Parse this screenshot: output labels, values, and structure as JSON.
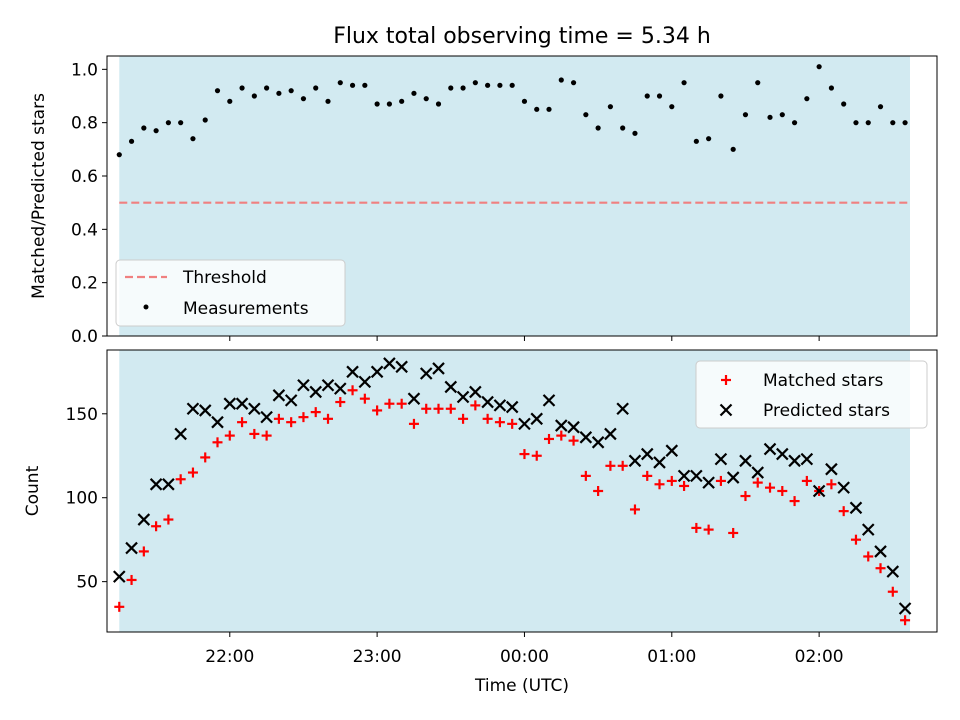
{
  "figure_title": "Flux total observing time = 5.34 h",
  "colors": {
    "band": "#add8e6",
    "threshold": "#f08080",
    "measurements": "#000000",
    "matched": "#ff0000",
    "predicted": "#000000"
  },
  "chart_data": [
    {
      "type": "scatter",
      "title": "",
      "xlabel": "",
      "ylabel": "Matched/Predicted stars",
      "ylim": [
        0.0,
        1.05
      ],
      "yticks": [
        "0.0",
        "0.2",
        "0.4",
        "0.6",
        "0.8",
        "1.0"
      ],
      "xticks": [
        "22:00",
        "23:00",
        "00:00",
        "01:00",
        "02:00"
      ],
      "tick_labels_visible_x": false,
      "legend_position": "lower-left",
      "shaded_time_range": [
        "21:15",
        "02:37"
      ],
      "threshold": {
        "name": "Threshold",
        "value": 0.5
      },
      "series": [
        {
          "name": "Measurements",
          "x": [
            "21:15",
            "21:20",
            "21:25",
            "21:30",
            "21:35",
            "21:40",
            "21:45",
            "21:50",
            "21:55",
            "22:00",
            "22:05",
            "22:10",
            "22:15",
            "22:20",
            "22:25",
            "22:30",
            "22:35",
            "22:40",
            "22:45",
            "22:50",
            "22:55",
            "23:00",
            "23:05",
            "23:10",
            "23:15",
            "23:20",
            "23:25",
            "23:30",
            "23:35",
            "23:40",
            "23:45",
            "23:50",
            "23:55",
            "00:00",
            "00:05",
            "00:10",
            "00:15",
            "00:20",
            "00:25",
            "00:30",
            "00:35",
            "00:40",
            "00:45",
            "00:50",
            "00:55",
            "01:00",
            "01:05",
            "01:10",
            "01:15",
            "01:20",
            "01:25",
            "01:30",
            "01:35",
            "01:40",
            "01:45",
            "01:50",
            "01:55",
            "02:00",
            "02:05",
            "02:10",
            "02:15",
            "02:20",
            "02:25",
            "02:30",
            "02:35"
          ],
          "y": [
            0.68,
            0.73,
            0.78,
            0.77,
            0.8,
            0.8,
            0.74,
            0.81,
            0.92,
            0.88,
            0.93,
            0.9,
            0.93,
            0.91,
            0.92,
            0.89,
            0.93,
            0.88,
            0.95,
            0.94,
            0.94,
            0.87,
            0.87,
            0.88,
            0.91,
            0.89,
            0.87,
            0.93,
            0.93,
            0.95,
            0.94,
            0.94,
            0.94,
            0.88,
            0.85,
            0.85,
            0.96,
            0.95,
            0.83,
            0.78,
            0.86,
            0.78,
            0.76,
            0.9,
            0.9,
            0.86,
            0.95,
            0.73,
            0.74,
            0.9,
            0.7,
            0.83,
            0.95,
            0.82,
            0.83,
            0.8,
            0.89,
            1.01,
            0.93,
            0.87,
            0.8,
            0.8,
            0.86,
            0.8,
            0.8
          ]
        }
      ]
    },
    {
      "type": "scatter",
      "title": "",
      "xlabel": "Time (UTC)",
      "ylabel": "Count",
      "ylim": [
        20,
        188
      ],
      "yticks": [
        "50",
        "100",
        "150"
      ],
      "xticks": [
        "22:00",
        "23:00",
        "00:00",
        "01:00",
        "02:00"
      ],
      "legend_position": "upper-right",
      "shaded_time_range": [
        "21:15",
        "02:37"
      ],
      "series": [
        {
          "name": "Matched stars",
          "marker": "plus",
          "x": [
            "21:15",
            "21:20",
            "21:25",
            "21:30",
            "21:35",
            "21:40",
            "21:45",
            "21:50",
            "21:55",
            "22:00",
            "22:05",
            "22:10",
            "22:15",
            "22:20",
            "22:25",
            "22:30",
            "22:35",
            "22:40",
            "22:45",
            "22:50",
            "22:55",
            "23:00",
            "23:05",
            "23:10",
            "23:15",
            "23:20",
            "23:25",
            "23:30",
            "23:35",
            "23:40",
            "23:45",
            "23:50",
            "23:55",
            "00:00",
            "00:05",
            "00:10",
            "00:15",
            "00:20",
            "00:25",
            "00:30",
            "00:35",
            "00:40",
            "00:45",
            "00:50",
            "00:55",
            "01:00",
            "01:05",
            "01:10",
            "01:15",
            "01:20",
            "01:25",
            "01:30",
            "01:35",
            "01:40",
            "01:45",
            "01:50",
            "01:55",
            "02:00",
            "02:05",
            "02:10",
            "02:15",
            "02:20",
            "02:25",
            "02:30",
            "02:35"
          ],
          "y": [
            35,
            51,
            68,
            83,
            87,
            111,
            115,
            124,
            133,
            137,
            145,
            138,
            137,
            147,
            145,
            148,
            151,
            147,
            157,
            164,
            159,
            152,
            156,
            156,
            144,
            153,
            153,
            153,
            147,
            155,
            147,
            145,
            144,
            126,
            125,
            135,
            137,
            134,
            113,
            104,
            119,
            119,
            93,
            113,
            108,
            110,
            107,
            82,
            81,
            110,
            79,
            101,
            109,
            106,
            104,
            98,
            110,
            104,
            108,
            92,
            75,
            65,
            58,
            44,
            27
          ]
        },
        {
          "name": "Predicted stars",
          "marker": "x",
          "x": [
            "21:15",
            "21:20",
            "21:25",
            "21:30",
            "21:35",
            "21:40",
            "21:45",
            "21:50",
            "21:55",
            "22:00",
            "22:05",
            "22:10",
            "22:15",
            "22:20",
            "22:25",
            "22:30",
            "22:35",
            "22:40",
            "22:45",
            "22:50",
            "22:55",
            "23:00",
            "23:05",
            "23:10",
            "23:15",
            "23:20",
            "23:25",
            "23:30",
            "23:35",
            "23:40",
            "23:45",
            "23:50",
            "23:55",
            "00:00",
            "00:05",
            "00:10",
            "00:15",
            "00:20",
            "00:25",
            "00:30",
            "00:35",
            "00:40",
            "00:45",
            "00:50",
            "00:55",
            "01:00",
            "01:05",
            "01:10",
            "01:15",
            "01:20",
            "01:25",
            "01:30",
            "01:35",
            "01:40",
            "01:45",
            "01:50",
            "01:55",
            "02:00",
            "02:05",
            "02:10",
            "02:15",
            "02:20",
            "02:25",
            "02:30",
            "02:35"
          ],
          "y": [
            53,
            70,
            87,
            108,
            108,
            138,
            153,
            152,
            145,
            156,
            156,
            153,
            148,
            161,
            158,
            167,
            163,
            167,
            165,
            175,
            169,
            175,
            180,
            178,
            159,
            174,
            177,
            166,
            160,
            163,
            157,
            155,
            154,
            144,
            147,
            158,
            143,
            142,
            136,
            133,
            138,
            153,
            122,
            126,
            121,
            128,
            113,
            113,
            109,
            123,
            112,
            122,
            115,
            129,
            126,
            122,
            123,
            104,
            117,
            106,
            94,
            81,
            68,
            56,
            34
          ]
        }
      ]
    }
  ]
}
